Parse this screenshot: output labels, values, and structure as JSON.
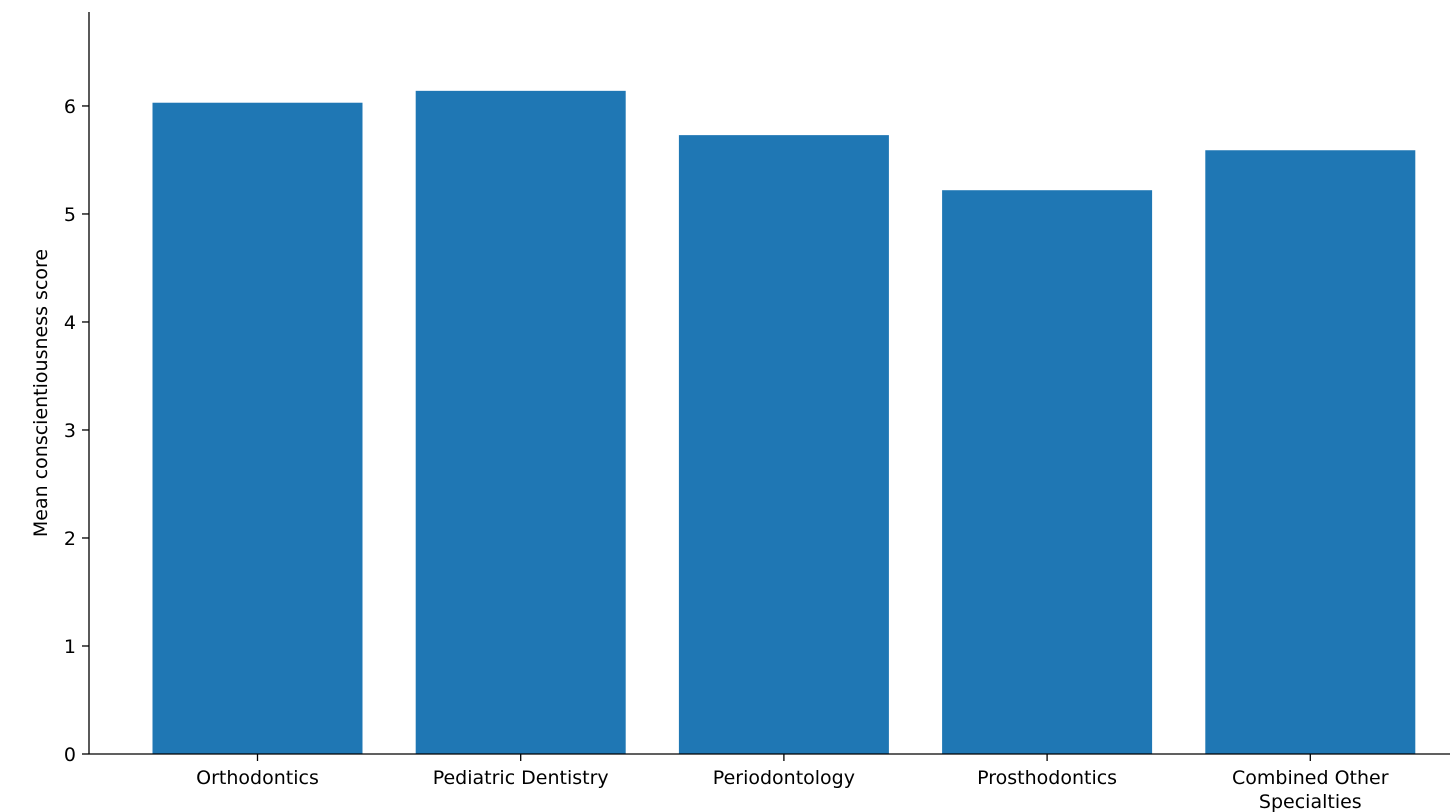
{
  "chart_data": {
    "type": "bar",
    "title": "",
    "xlabel": "",
    "ylabel": "Mean conscientiousness score",
    "categories": [
      [
        "Orthodontics"
      ],
      [
        "Pediatric Dentistry"
      ],
      [
        "Periodontology"
      ],
      [
        "Prosthodontics"
      ],
      [
        "Combined Other",
        "Specialties"
      ]
    ],
    "values": [
      6.03,
      6.14,
      5.73,
      5.22,
      5.59
    ],
    "ylim": [
      0,
      6.87
    ],
    "yticks": [
      0,
      1,
      2,
      3,
      4,
      5,
      6
    ],
    "bar_color": "#1f77b4",
    "grid": false,
    "legend": "none"
  }
}
